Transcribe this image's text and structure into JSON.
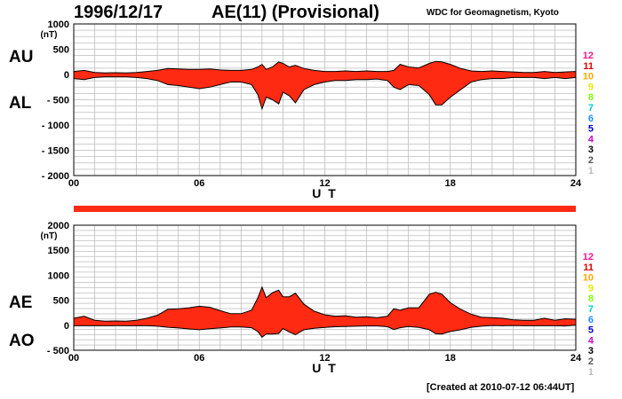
{
  "header": {
    "date": "1996/12/17",
    "title": "AE(11) (Provisional)",
    "source": "WDC for Geomagnetism, Kyoto"
  },
  "footer": {
    "created": "[Created at 2010-07-12 06:44UT]"
  },
  "colors": {
    "fill": "#ff2a12",
    "grid": "#bdbdbd",
    "coverage_bar": "#ff2a12"
  },
  "station_scale": [
    {
      "label": "12",
      "color": "#ff1493"
    },
    {
      "label": "11",
      "color": "#e00000"
    },
    {
      "label": "10",
      "color": "#ffa500"
    },
    {
      "label": "9",
      "color": "#e8e800"
    },
    {
      "label": "8",
      "color": "#7fff00"
    },
    {
      "label": "7",
      "color": "#00ced1"
    },
    {
      "label": "6",
      "color": "#1e90ff"
    },
    {
      "label": "5",
      "color": "#0000cd"
    },
    {
      "label": "4",
      "color": "#d000d0"
    },
    {
      "label": "3",
      "color": "#000000"
    },
    {
      "label": "2",
      "color": "#555555"
    },
    {
      "label": "1",
      "color": "#bbbbbb"
    }
  ],
  "chart_data": [
    {
      "type": "area",
      "panel": "AU/AL",
      "upper_label": "AU",
      "lower_label": "AL",
      "unit": "(nT)",
      "xlabel": "U T",
      "xlim": [
        0,
        24
      ],
      "ylim": [
        -2000,
        1000
      ],
      "x_ticks": [
        "00",
        "06",
        "12",
        "18",
        "24"
      ],
      "y_ticks": [
        "1000",
        "500",
        "0",
        "- 500",
        "- 1000",
        "- 1500",
        "- 2000"
      ],
      "grid": true,
      "x": [
        0,
        0.5,
        1,
        1.5,
        2,
        2.5,
        3,
        3.5,
        4,
        4.5,
        5,
        5.5,
        6,
        6.5,
        7,
        7.5,
        8,
        8.5,
        8.8,
        9,
        9.2,
        9.5,
        9.8,
        10,
        10.3,
        10.6,
        11,
        11.5,
        12,
        12.5,
        13,
        13.5,
        14,
        14.5,
        15,
        15.3,
        15.6,
        16,
        16.5,
        17,
        17.3,
        17.6,
        18,
        18.5,
        19,
        19.5,
        20,
        20.5,
        21,
        21.5,
        22,
        22.5,
        23,
        23.5,
        24
      ],
      "series": [
        {
          "name": "AU",
          "values": [
            60,
            80,
            40,
            30,
            35,
            30,
            40,
            60,
            80,
            120,
            110,
            100,
            100,
            110,
            90,
            80,
            80,
            100,
            150,
            200,
            100,
            150,
            250,
            220,
            150,
            180,
            120,
            80,
            60,
            60,
            70,
            60,
            70,
            60,
            60,
            80,
            200,
            150,
            130,
            220,
            260,
            250,
            200,
            120,
            70,
            60,
            70,
            60,
            50,
            40,
            40,
            60,
            40,
            50,
            60
          ]
        },
        {
          "name": "AL",
          "values": [
            -80,
            -100,
            -60,
            -50,
            -50,
            -50,
            -60,
            -80,
            -120,
            -200,
            -220,
            -250,
            -280,
            -250,
            -200,
            -150,
            -150,
            -200,
            -400,
            -680,
            -450,
            -500,
            -580,
            -350,
            -420,
            -560,
            -300,
            -200,
            -150,
            -120,
            -120,
            -100,
            -100,
            -90,
            -120,
            -250,
            -300,
            -200,
            -220,
            -400,
            -600,
            -600,
            -450,
            -300,
            -150,
            -100,
            -80,
            -80,
            -60,
            -60,
            -60,
            -80,
            -60,
            -80,
            -60
          ]
        }
      ]
    },
    {
      "type": "area",
      "panel": "AE/AO",
      "upper_label": "AE",
      "lower_label": "AO",
      "unit": "(nT)",
      "xlabel": "U T",
      "xlim": [
        0,
        24
      ],
      "ylim": [
        -500,
        2000
      ],
      "x_ticks": [
        "00",
        "06",
        "12",
        "18",
        "24"
      ],
      "y_ticks": [
        "2000",
        "1500",
        "1000",
        "500",
        "0",
        "- 500"
      ],
      "grid": true,
      "x": [
        0,
        0.5,
        1,
        1.5,
        2,
        2.5,
        3,
        3.5,
        4,
        4.5,
        5,
        5.5,
        6,
        6.5,
        7,
        7.5,
        8,
        8.5,
        8.8,
        9,
        9.2,
        9.5,
        9.8,
        10,
        10.3,
        10.6,
        11,
        11.5,
        12,
        12.5,
        13,
        13.5,
        14,
        14.5,
        15,
        15.3,
        15.6,
        16,
        16.5,
        17,
        17.3,
        17.6,
        18,
        18.5,
        19,
        19.5,
        20,
        20.5,
        21,
        21.5,
        22,
        22.5,
        23,
        23.5,
        24
      ],
      "series": [
        {
          "name": "AE",
          "values": [
            140,
            180,
            100,
            80,
            85,
            80,
            100,
            140,
            200,
            320,
            330,
            350,
            380,
            360,
            290,
            230,
            230,
            300,
            550,
            760,
            550,
            650,
            700,
            570,
            570,
            640,
            420,
            280,
            210,
            180,
            190,
            160,
            170,
            150,
            180,
            330,
            300,
            350,
            350,
            620,
            660,
            620,
            450,
            320,
            220,
            160,
            150,
            140,
            110,
            100,
            100,
            140,
            100,
            130,
            120
          ]
        },
        {
          "name": "AO",
          "values": [
            -10,
            -10,
            -10,
            -10,
            -8,
            -10,
            -10,
            -10,
            -20,
            -40,
            -55,
            -75,
            -90,
            -70,
            -55,
            -35,
            -35,
            -50,
            -125,
            -240,
            -175,
            -175,
            -165,
            -65,
            -135,
            -190,
            -90,
            -60,
            -45,
            -30,
            -25,
            -20,
            -15,
            -15,
            -30,
            -85,
            -50,
            -25,
            -45,
            -90,
            -170,
            -175,
            -125,
            -90,
            -40,
            -20,
            -5,
            -10,
            -5,
            -10,
            -10,
            -10,
            -10,
            -15,
            0
          ]
        }
      ]
    }
  ]
}
